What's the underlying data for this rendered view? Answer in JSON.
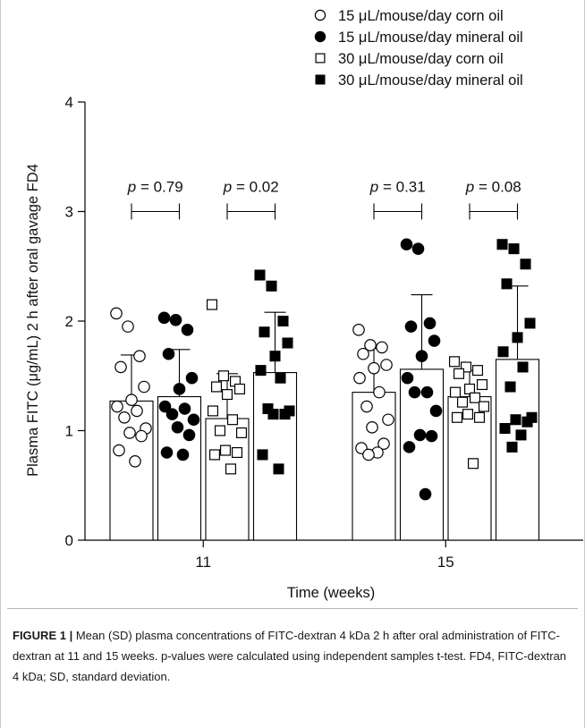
{
  "chart_data": {
    "type": "bar",
    "title": "",
    "xlabel": "Time (weeks)",
    "ylabel": "Plasma FITC (μg/mL) 2 h after oral gavage FD4",
    "ylim": [
      0,
      4
    ],
    "yticks": [
      0,
      1,
      2,
      3,
      4
    ],
    "categories": [
      "11",
      "15"
    ],
    "legend_position": "top-right",
    "error_bars": "SD",
    "series": [
      {
        "name": "15 μL/mouse/day corn oil",
        "marker": "circle-open",
        "means": [
          1.27,
          1.35
        ],
        "sd": [
          0.42,
          0.4
        ],
        "points": [
          [
            2.07,
            1.95,
            1.68,
            1.58,
            1.4,
            1.28,
            1.22,
            1.18,
            1.12,
            1.02,
            0.98,
            0.95,
            0.82,
            0.72
          ],
          [
            1.92,
            1.78,
            1.76,
            1.7,
            1.6,
            1.57,
            1.48,
            1.35,
            1.22,
            1.1,
            1.03,
            0.88,
            0.84,
            0.8,
            0.78
          ]
        ]
      },
      {
        "name": "15 μL/mouse/day mineral oil",
        "marker": "circle-filled",
        "means": [
          1.31,
          1.56
        ],
        "sd": [
          0.43,
          0.68
        ],
        "points": [
          [
            2.03,
            2.01,
            1.92,
            1.7,
            1.48,
            1.38,
            1.22,
            1.2,
            1.15,
            1.1,
            1.03,
            0.96,
            0.8,
            0.78
          ],
          [
            2.7,
            2.66,
            1.98,
            1.95,
            1.82,
            1.68,
            1.48,
            1.35,
            1.35,
            1.18,
            0.96,
            0.95,
            0.85,
            0.42
          ]
        ]
      },
      {
        "name": "30 μL/mouse/day corn oil",
        "marker": "square-open",
        "means": [
          1.11,
          1.31
        ],
        "sd": [
          0.41,
          0.24
        ],
        "points": [
          [
            2.15,
            1.5,
            1.45,
            1.4,
            1.38,
            1.33,
            1.18,
            1.1,
            1.0,
            0.98,
            0.82,
            0.8,
            0.78,
            0.65
          ],
          [
            1.63,
            1.58,
            1.55,
            1.52,
            1.42,
            1.38,
            1.35,
            1.3,
            1.26,
            1.22,
            1.15,
            1.12,
            1.12,
            0.7
          ]
        ]
      },
      {
        "name": "30 μL/mouse/day mineral oil",
        "marker": "square-filled",
        "means": [
          1.53,
          1.65
        ],
        "sd": [
          0.55,
          0.67
        ],
        "points": [
          [
            2.42,
            2.32,
            2.0,
            1.9,
            1.8,
            1.68,
            1.55,
            1.48,
            1.2,
            1.18,
            1.15,
            1.15,
            0.78,
            0.65
          ],
          [
            2.7,
            2.66,
            2.52,
            2.34,
            1.98,
            1.85,
            1.72,
            1.58,
            1.4,
            1.12,
            1.1,
            1.08,
            1.02,
            0.96,
            0.85
          ]
        ]
      }
    ],
    "annotations": [
      {
        "text": "p = 0.79",
        "p_symbol": "p",
        "rest": " = 0.79",
        "group": 0,
        "pair": [
          0,
          1
        ],
        "y": 3.0
      },
      {
        "text": "p = 0.02",
        "p_symbol": "p",
        "rest": " = 0.02",
        "group": 0,
        "pair": [
          2,
          3
        ],
        "y": 3.0
      },
      {
        "text": "p = 0.31",
        "p_symbol": "p",
        "rest": " = 0.31",
        "group": 1,
        "pair": [
          0,
          1
        ],
        "y": 3.0
      },
      {
        "text": "p = 0.08",
        "p_symbol": "p",
        "rest": " = 0.08",
        "group": 1,
        "pair": [
          2,
          3
        ],
        "y": 3.0
      }
    ]
  },
  "caption": {
    "figure_label": "FIGURE 1 |",
    "text": " Mean (SD) plasma concentrations of FITC-dextran 4 kDa 2 h after oral administration of FITC-dextran at 11 and 15 weeks. p-values were calculated using independent samples t-test. FD4, FITC-dextran 4 kDa; SD, standard deviation."
  },
  "colors": {
    "bar_fill": "#ffffff",
    "stroke": "#000000",
    "marker_fill": "#000000",
    "caption_rule": "#b5b5b5"
  }
}
